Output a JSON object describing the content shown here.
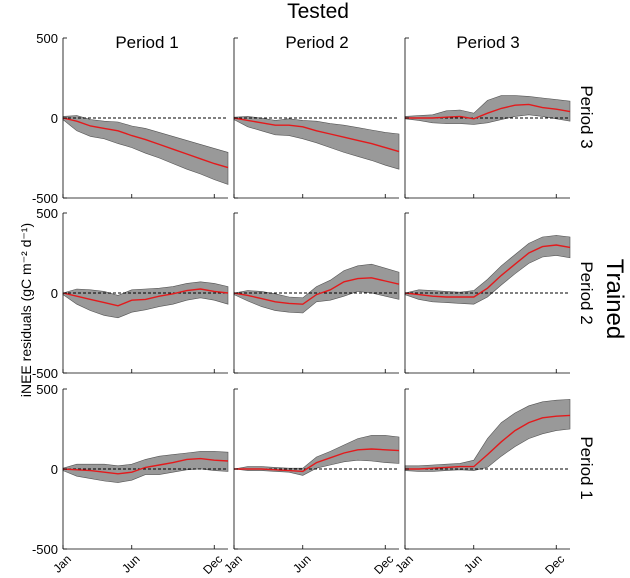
{
  "figure": {
    "title": "Tested",
    "side_title": "Trained",
    "ylabel": "iNEE residuals (gC m⁻² d⁻¹)",
    "columns": [
      "Period 1",
      "Period 2",
      "Period 3"
    ],
    "rows": [
      "Period 3",
      "Period 2",
      "Period 1"
    ],
    "colors": {
      "mean_line": "#e31a1c",
      "band": "#999999",
      "zero_line": "#000000"
    }
  },
  "chart_data": {
    "type": "area",
    "layout": "3x3 grid of panels: rows = trained period, columns = tested period",
    "xlabel": "",
    "ylabel": "iNEE residuals (gC m⁻² d⁻¹)",
    "x_ticks": [
      "Jan",
      "Jun",
      "Dec"
    ],
    "x_tick_months": [
      0,
      5,
      11
    ],
    "xlim_months": [
      0,
      12
    ],
    "ylim": [
      -500,
      500
    ],
    "yticks": [
      -500,
      0,
      500
    ],
    "ytick_labels": [
      "-500",
      "0",
      "500"
    ],
    "reference_line": {
      "y": 0,
      "style": "dashed"
    },
    "x_months": [
      0,
      1,
      2,
      3,
      4,
      5,
      6,
      7,
      8,
      9,
      10,
      11,
      12
    ],
    "panels": [
      {
        "trained": "Period 3",
        "tested": "Period 1",
        "mean": [
          0,
          -20,
          -50,
          -65,
          -80,
          -110,
          -135,
          -165,
          -195,
          -225,
          -255,
          -285,
          -310
        ],
        "upper": [
          10,
          15,
          -10,
          -20,
          -25,
          -50,
          -65,
          -90,
          -115,
          -140,
          -165,
          -190,
          -215
        ],
        "lower": [
          -10,
          -80,
          -115,
          -130,
          -160,
          -185,
          -220,
          -250,
          -285,
          -320,
          -350,
          -385,
          -415
        ]
      },
      {
        "trained": "Period 3",
        "tested": "Period 2",
        "mean": [
          0,
          -15,
          -30,
          -45,
          -45,
          -55,
          -80,
          -100,
          -120,
          -140,
          -160,
          -185,
          -210
        ],
        "upper": [
          5,
          10,
          0,
          -15,
          -5,
          -15,
          -20,
          -35,
          -45,
          -60,
          -75,
          -90,
          -100
        ],
        "lower": [
          -10,
          -55,
          -80,
          -105,
          -110,
          -130,
          -155,
          -185,
          -215,
          -240,
          -265,
          -295,
          -320
        ]
      },
      {
        "trained": "Period 3",
        "tested": "Period 3",
        "mean": [
          0,
          0,
          0,
          5,
          10,
          -5,
          30,
          60,
          80,
          85,
          65,
          55,
          40
        ],
        "upper": [
          10,
          15,
          20,
          45,
          50,
          30,
          110,
          140,
          140,
          135,
          125,
          115,
          105
        ],
        "lower": [
          -5,
          -15,
          -30,
          -35,
          -35,
          -40,
          -30,
          -10,
          10,
          20,
          10,
          -5,
          -20
        ]
      },
      {
        "trained": "Period 2",
        "tested": "Period 1",
        "mean": [
          0,
          -20,
          -40,
          -60,
          -80,
          -45,
          -40,
          -20,
          -5,
          15,
          25,
          10,
          0
        ],
        "upper": [
          0,
          25,
          20,
          10,
          -15,
          20,
          25,
          30,
          40,
          60,
          70,
          60,
          40
        ],
        "lower": [
          -10,
          -70,
          -110,
          -140,
          -155,
          -120,
          -105,
          -85,
          -70,
          -45,
          -30,
          -45,
          -70
        ]
      },
      {
        "trained": "Period 2",
        "tested": "Period 2",
        "mean": [
          0,
          -15,
          -35,
          -55,
          -65,
          -70,
          -10,
          20,
          70,
          90,
          95,
          75,
          55
        ],
        "upper": [
          0,
          15,
          10,
          -5,
          -25,
          -30,
          40,
          80,
          140,
          170,
          180,
          155,
          130
        ],
        "lower": [
          -10,
          -50,
          -85,
          -110,
          -120,
          -125,
          -55,
          -45,
          -20,
          10,
          0,
          -20,
          -40
        ]
      },
      {
        "trained": "Period 2",
        "tested": "Period 3",
        "mean": [
          0,
          -10,
          -20,
          -25,
          -25,
          -25,
          30,
          110,
          180,
          250,
          290,
          300,
          285
        ],
        "upper": [
          0,
          20,
          15,
          10,
          5,
          15,
          85,
          170,
          240,
          310,
          350,
          360,
          350
        ],
        "lower": [
          -10,
          -40,
          -55,
          -60,
          -65,
          -70,
          -25,
          50,
          120,
          185,
          225,
          235,
          220
        ]
      },
      {
        "trained": "Period 1",
        "tested": "Period 1",
        "mean": [
          0,
          -5,
          -10,
          -20,
          -30,
          -20,
          10,
          25,
          40,
          60,
          65,
          55,
          50
        ],
        "upper": [
          5,
          30,
          30,
          30,
          20,
          30,
          60,
          80,
          90,
          100,
          110,
          110,
          105
        ],
        "lower": [
          -10,
          -45,
          -60,
          -75,
          -85,
          -70,
          -35,
          -35,
          -20,
          -5,
          0,
          -10,
          -15
        ]
      },
      {
        "trained": "Period 1",
        "tested": "Period 2",
        "mean": [
          0,
          0,
          0,
          -5,
          -10,
          -15,
          40,
          70,
          100,
          120,
          125,
          120,
          115
        ],
        "upper": [
          0,
          15,
          15,
          10,
          5,
          5,
          75,
          110,
          150,
          190,
          210,
          210,
          200
        ],
        "lower": [
          0,
          -10,
          -10,
          -15,
          -20,
          -40,
          5,
          25,
          45,
          55,
          50,
          40,
          35
        ]
      },
      {
        "trained": "Period 1",
        "tested": "Period 3",
        "mean": [
          0,
          0,
          5,
          10,
          15,
          15,
          90,
          170,
          240,
          290,
          320,
          330,
          335
        ],
        "upper": [
          20,
          20,
          25,
          30,
          35,
          55,
          190,
          290,
          350,
          395,
          420,
          430,
          435
        ],
        "lower": [
          -10,
          -15,
          -15,
          -10,
          -5,
          -10,
          10,
          80,
          140,
          190,
          220,
          240,
          250
        ]
      }
    ]
  }
}
